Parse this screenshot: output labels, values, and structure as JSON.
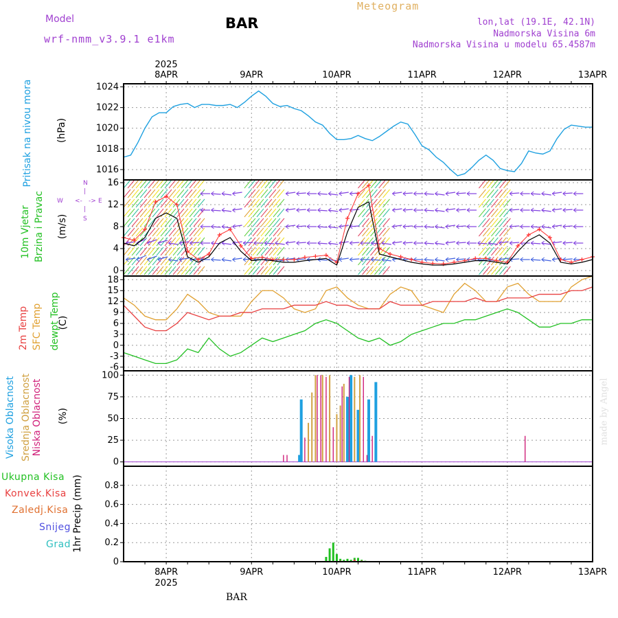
{
  "header": {
    "model_label": "Model",
    "model_value": "wrf-nmm_v3.9.1 e1km",
    "station": "BAR",
    "title": "Meteogram",
    "coords": "lon,lat (19.1E, 42.1N)",
    "altitude": "Nadmorska Visina 6m",
    "model_altitude": "Nadmorska Visina u modelu 65.4587m",
    "footer_station": "BAR",
    "watermark": "made by Angel"
  },
  "colors": {
    "pressure": "#1ea0e0",
    "temp2m": "#e84040",
    "sfc": "#e0a030",
    "dew": "#22c022",
    "high_cloud": "#1ea0e0",
    "mid_cloud": "#d0a040",
    "low_cloud": "#d0207a",
    "purple": "#a040d0",
    "precip": "#22c022",
    "wind_line": "#000000",
    "gust": "#ff3030"
  },
  "panel_labels": {
    "pressure": {
      "name": "Pritisak na nivou mora",
      "unit": "(hPa)"
    },
    "wind": {
      "name1": "10m Vjetar",
      "name2": "Brzina i Pravac",
      "unit": "(m/s)",
      "compass": [
        "N",
        "E",
        "S",
        "W"
      ]
    },
    "temp": {
      "name1": "2m Temp",
      "name2": "SFC Temp",
      "name3": "dewpt Temp",
      "unit": "(C)"
    },
    "cloud": {
      "name1": "Visoka Oblacnost",
      "name2": "Srednja Oblacnost",
      "name3": "Niska Oblacnost",
      "unit": "(%)"
    },
    "precip": {
      "unit": "1hr Precip (mm)",
      "legend": [
        "Ukupna Kisa",
        "Konvek.Kisa",
        "Zaledj.Kisa",
        "Snijeg",
        "Grad"
      ]
    }
  },
  "chart_data": {
    "type": "line",
    "x_axis": {
      "year": "2025",
      "days": [
        "8APR",
        "9APR",
        "10APR",
        "11APR",
        "12APR",
        "13APR"
      ],
      "range_hours": [
        -12,
        120
      ]
    },
    "pressure": {
      "ylim": [
        1015,
        1024.3
      ],
      "yticks": [
        1016,
        1018,
        1020,
        1022,
        1024
      ],
      "x": [
        -12,
        -10,
        -8,
        -6,
        -4,
        -2,
        0,
        2,
        4,
        6,
        8,
        10,
        12,
        14,
        16,
        18,
        20,
        22,
        24,
        26,
        28,
        30,
        32,
        34,
        36,
        38,
        40,
        42,
        44,
        46,
        48,
        50,
        52,
        54,
        56,
        58,
        60,
        62,
        64,
        66,
        68,
        70,
        72,
        74,
        76,
        78,
        80,
        82,
        84,
        86,
        88,
        90,
        92,
        94,
        96,
        98,
        100,
        102,
        104,
        106,
        108,
        110,
        112,
        114,
        116,
        118,
        120
      ],
      "values": [
        1017.2,
        1017.4,
        1018.6,
        1020.0,
        1021.1,
        1021.5,
        1021.5,
        1022.1,
        1022.3,
        1022.4,
        1022.0,
        1022.3,
        1022.3,
        1022.2,
        1022.2,
        1022.3,
        1022.0,
        1022.5,
        1023.1,
        1023.6,
        1023.1,
        1022.4,
        1022.1,
        1022.2,
        1021.9,
        1021.7,
        1021.2,
        1020.6,
        1020.3,
        1019.5,
        1018.9,
        1018.9,
        1019.0,
        1019.3,
        1019.0,
        1018.8,
        1019.2,
        1019.7,
        1020.2,
        1020.6,
        1020.4,
        1019.4,
        1018.3,
        1017.9,
        1017.2,
        1016.7,
        1016.0,
        1015.4,
        1015.6,
        1016.2,
        1016.9,
        1017.4,
        1016.9,
        1016.1,
        1015.9,
        1015.8,
        1016.6,
        1017.8,
        1017.6,
        1017.5,
        1017.8,
        1019.0,
        1019.9,
        1020.3,
        1020.2,
        1020.1,
        1020.1
      ]
    },
    "wind": {
      "ylim": [
        -1,
        16.5
      ],
      "yticks": [
        0,
        4,
        8,
        12,
        16
      ],
      "tick_labels": [
        "0",
        "4",
        "8",
        "12",
        "16"
      ],
      "x": [
        -12,
        -9,
        -6,
        -3,
        0,
        3,
        6,
        9,
        12,
        15,
        18,
        21,
        24,
        27,
        30,
        33,
        36,
        39,
        42,
        45,
        48,
        51,
        54,
        57,
        60,
        63,
        66,
        69,
        72,
        75,
        78,
        81,
        84,
        87,
        90,
        93,
        96,
        99,
        102,
        105,
        108,
        111,
        114,
        117,
        120
      ],
      "speed": [
        5.0,
        4.5,
        6.0,
        9.5,
        10.5,
        9.5,
        2.5,
        1.5,
        2.5,
        5.0,
        6.0,
        3.5,
        1.8,
        2.0,
        1.8,
        1.5,
        1.5,
        1.8,
        2.0,
        2.2,
        1.0,
        7.0,
        11.5,
        12.5,
        3.0,
        2.5,
        2.0,
        1.5,
        1.2,
        1.0,
        1.0,
        1.2,
        1.5,
        1.8,
        1.8,
        1.5,
        1.2,
        3.5,
        5.5,
        6.5,
        5.0,
        1.5,
        1.2,
        1.5,
        2.0
      ],
      "gust": [
        6.0,
        5.5,
        7.5,
        12.5,
        13.5,
        12.0,
        3.5,
        2.0,
        3.0,
        6.5,
        7.5,
        4.5,
        2.2,
        2.4,
        2.0,
        2.0,
        2.0,
        2.4,
        2.6,
        2.8,
        1.5,
        9.5,
        14.0,
        15.5,
        4.0,
        3.0,
        2.5,
        2.0,
        1.5,
        1.3,
        1.2,
        1.5,
        1.8,
        2.2,
        2.2,
        1.8,
        1.5,
        4.5,
        6.5,
        7.5,
        6.0,
        2.0,
        1.5,
        2.0,
        2.5
      ],
      "hatch_windows": [
        [
          -12,
          10
        ],
        [
          22,
          32
        ],
        [
          54,
          62
        ],
        [
          88,
          96
        ]
      ]
    },
    "temperature": {
      "ylim": [
        -7,
        19
      ],
      "yticks": [
        -6,
        -3,
        0,
        3,
        6,
        9,
        12,
        15,
        18
      ],
      "x": [
        -12,
        -9,
        -6,
        -3,
        0,
        3,
        6,
        9,
        12,
        15,
        18,
        21,
        24,
        27,
        30,
        33,
        36,
        39,
        42,
        45,
        48,
        51,
        54,
        57,
        60,
        63,
        66,
        69,
        72,
        75,
        78,
        81,
        84,
        87,
        90,
        93,
        96,
        99,
        102,
        105,
        108,
        111,
        114,
        117,
        120
      ],
      "t2m": [
        11,
        8,
        5,
        4,
        4,
        6,
        9,
        8,
        7,
        8,
        8,
        9,
        9,
        10,
        10,
        10,
        11,
        11,
        11,
        12,
        11,
        11,
        10,
        10,
        10,
        12,
        11,
        11,
        11,
        12,
        12,
        12,
        12,
        13,
        12,
        12,
        13,
        13,
        13,
        14,
        14,
        14,
        15,
        15,
        16
      ],
      "sfc": [
        13,
        11,
        8,
        7,
        7,
        10,
        14,
        12,
        9,
        8,
        8,
        8,
        12,
        15,
        15,
        13,
        10,
        9,
        10,
        15,
        16,
        13,
        11,
        10,
        10,
        14,
        16,
        15,
        11,
        10,
        9,
        14,
        17,
        15,
        12,
        12,
        16,
        17,
        14,
        12,
        12,
        12,
        16,
        18,
        19
      ],
      "dew": [
        -2,
        -3,
        -4,
        -5,
        -5,
        -4,
        -1,
        -2,
        2,
        -1,
        -3,
        -2,
        0,
        2,
        1,
        2,
        3,
        4,
        6,
        7,
        6,
        4,
        2,
        1,
        2,
        0,
        1,
        3,
        4,
        5,
        6,
        6,
        7,
        7,
        8,
        9,
        10,
        9,
        7,
        5,
        5,
        6,
        6,
        7,
        7
      ]
    },
    "cloud": {
      "ylim": [
        -5,
        105
      ],
      "yticks": [
        0,
        25,
        50,
        75,
        100
      ],
      "high": [
        {
          "x": 38,
          "v": 72
        },
        {
          "x": 37.5,
          "v": 8
        },
        {
          "x": 54,
          "v": 60
        },
        {
          "x": 57,
          "v": 72
        },
        {
          "x": 59,
          "v": 92
        },
        {
          "x": 52,
          "v": 100
        },
        {
          "x": 51,
          "v": 75
        }
      ],
      "mid": [
        {
          "x": 40,
          "v": 45
        },
        {
          "x": 41,
          "v": 80
        },
        {
          "x": 42,
          "v": 100
        },
        {
          "x": 44,
          "v": 100
        },
        {
          "x": 46,
          "v": 100
        },
        {
          "x": 48,
          "v": 55
        },
        {
          "x": 49,
          "v": 65
        },
        {
          "x": 50,
          "v": 90
        },
        {
          "x": 53,
          "v": 98
        },
        {
          "x": 54.5,
          "v": 100
        }
      ],
      "low": [
        {
          "x": 33,
          "v": 8
        },
        {
          "x": 34,
          "v": 8
        },
        {
          "x": 39,
          "v": 28
        },
        {
          "x": 42.5,
          "v": 100
        },
        {
          "x": 43.5,
          "v": 100
        },
        {
          "x": 45,
          "v": 98
        },
        {
          "x": 47,
          "v": 40
        },
        {
          "x": 49.5,
          "v": 87
        },
        {
          "x": 51.5,
          "v": 98
        },
        {
          "x": 55.5,
          "v": 98
        },
        {
          "x": 58,
          "v": 30
        },
        {
          "x": 56.5,
          "v": 8
        },
        {
          "x": 101,
          "v": 30
        }
      ]
    },
    "precip": {
      "ylim": [
        0,
        1.0
      ],
      "yticks": [
        0,
        0.2,
        0.4,
        0.6,
        0.8
      ],
      "tick_labels": [
        "0",
        "0.2",
        "0.4",
        "0.6",
        "0.8"
      ],
      "total": [
        {
          "x": 45,
          "v": 0.05
        },
        {
          "x": 46,
          "v": 0.14
        },
        {
          "x": 47,
          "v": 0.2
        },
        {
          "x": 48,
          "v": 0.08
        },
        {
          "x": 49,
          "v": 0.03
        },
        {
          "x": 50,
          "v": 0.02
        },
        {
          "x": 51,
          "v": 0.03
        },
        {
          "x": 52,
          "v": 0.02
        },
        {
          "x": 53,
          "v": 0.04
        },
        {
          "x": 54,
          "v": 0.04
        },
        {
          "x": 55,
          "v": 0.02
        },
        {
          "x": 56,
          "v": 0.01
        }
      ],
      "convective": [
        {
          "x": 49,
          "v": 0.01
        },
        {
          "x": 53,
          "v": 0.02
        },
        {
          "x": 55,
          "v": 0.01
        }
      ]
    }
  }
}
